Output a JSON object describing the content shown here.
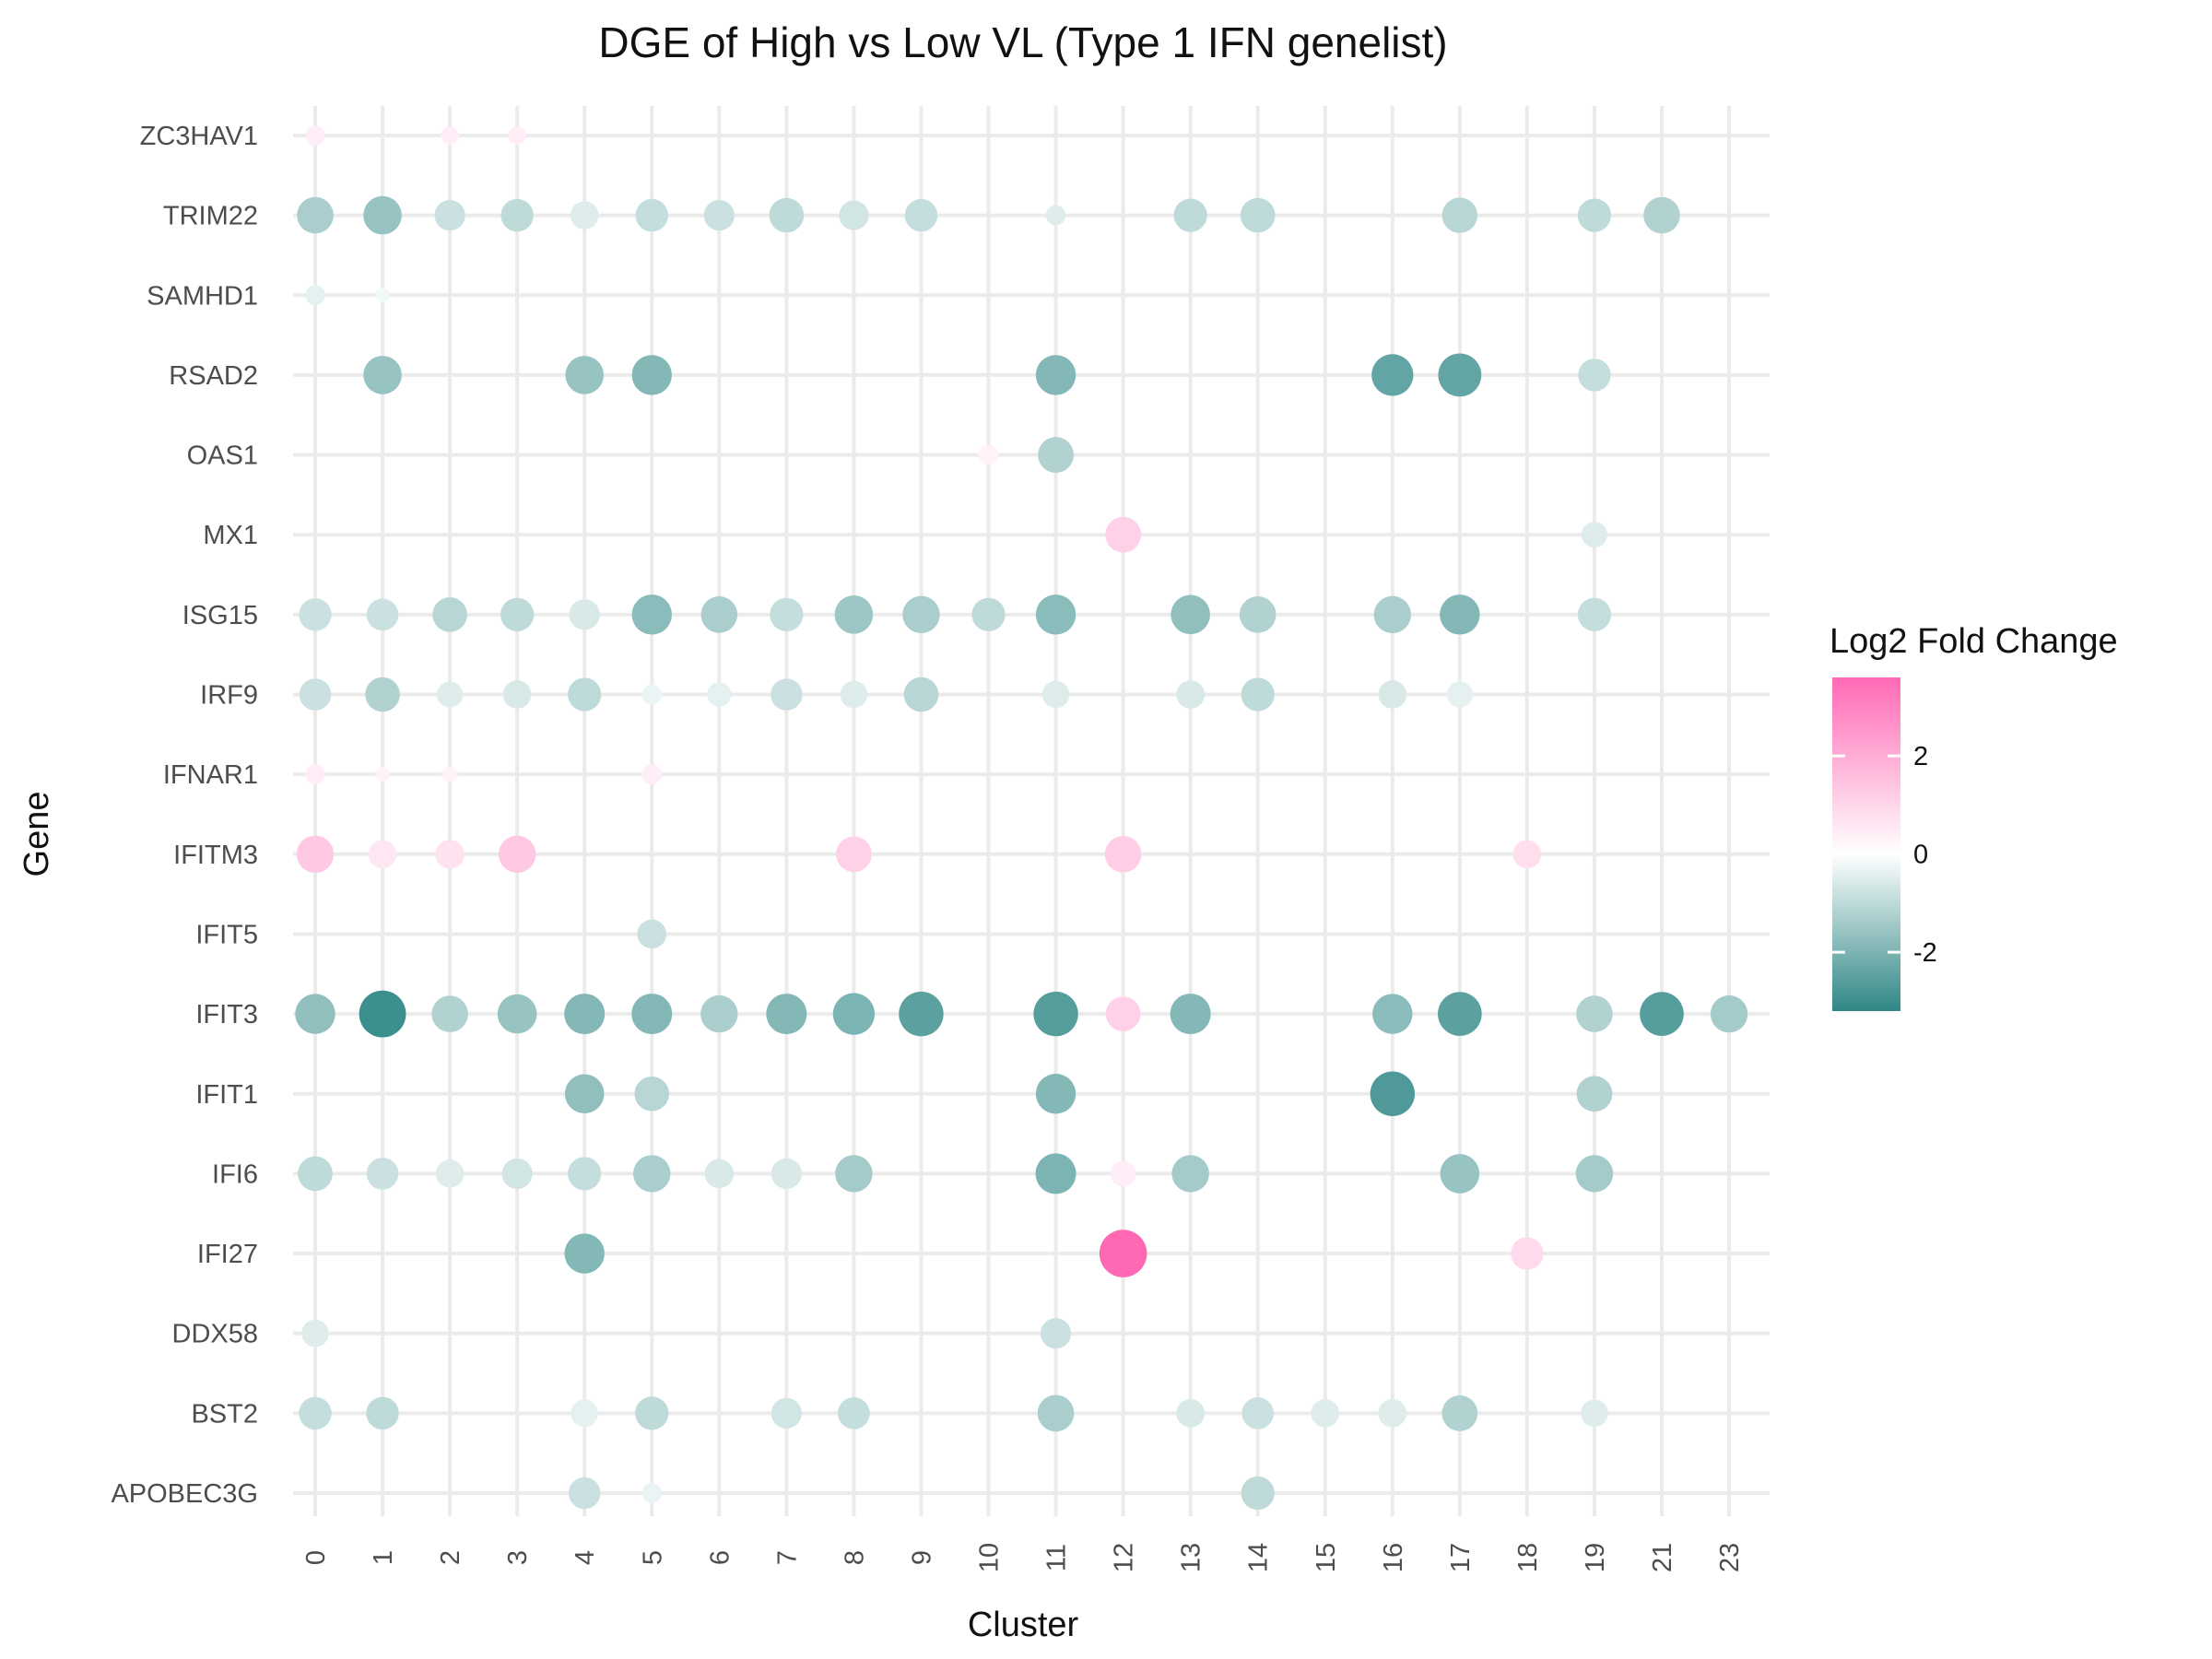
{
  "chart_data": {
    "type": "scatter",
    "title": "DGE of High vs Low VL (Type 1 IFN genelist)",
    "xlabel": "Cluster",
    "ylabel": "Gene",
    "x_categories": [
      "0",
      "1",
      "2",
      "3",
      "4",
      "5",
      "6",
      "7",
      "8",
      "9",
      "10",
      "11",
      "12",
      "13",
      "14",
      "15",
      "16",
      "17",
      "18",
      "19",
      "21",
      "23"
    ],
    "y_categories": [
      "APOBEC3G",
      "BST2",
      "DDX58",
      "IFI27",
      "IFI6",
      "IFIT1",
      "IFIT3",
      "IFIT5",
      "IFITM3",
      "IFNAR1",
      "IRF9",
      "ISG15",
      "MX1",
      "OAS1",
      "RSAD2",
      "SAMHD1",
      "TRIM22",
      "ZC3HAV1"
    ],
    "grid": true,
    "legend": {
      "title": "Log2 Fold Change",
      "position": "right",
      "ticks": [
        2,
        0,
        -2
      ],
      "range": [
        -3.2,
        3.6
      ],
      "low_color": "#2e8785",
      "mid_color": "#ffffff",
      "high_color": "#ff69b4"
    },
    "points": [
      {
        "gene": "ZC3HAV1",
        "cluster": "0",
        "log2fc": 0.4,
        "size": 0.15
      },
      {
        "gene": "ZC3HAV1",
        "cluster": "2",
        "log2fc": 0.4,
        "size": 0.12
      },
      {
        "gene": "ZC3HAV1",
        "cluster": "3",
        "log2fc": 0.4,
        "size": 0.12
      },
      {
        "gene": "TRIM22",
        "cluster": "0",
        "log2fc": -1.3,
        "size": 0.5
      },
      {
        "gene": "TRIM22",
        "cluster": "1",
        "log2fc": -1.6,
        "size": 0.55
      },
      {
        "gene": "TRIM22",
        "cluster": "2",
        "log2fc": -0.8,
        "size": 0.35
      },
      {
        "gene": "TRIM22",
        "cluster": "3",
        "log2fc": -1.0,
        "size": 0.4
      },
      {
        "gene": "TRIM22",
        "cluster": "4",
        "log2fc": -0.5,
        "size": 0.3
      },
      {
        "gene": "TRIM22",
        "cluster": "5",
        "log2fc": -0.9,
        "size": 0.4
      },
      {
        "gene": "TRIM22",
        "cluster": "6",
        "log2fc": -0.8,
        "size": 0.35
      },
      {
        "gene": "TRIM22",
        "cluster": "7",
        "log2fc": -1.0,
        "size": 0.45
      },
      {
        "gene": "TRIM22",
        "cluster": "8",
        "log2fc": -0.7,
        "size": 0.33
      },
      {
        "gene": "TRIM22",
        "cluster": "9",
        "log2fc": -0.9,
        "size": 0.4
      },
      {
        "gene": "TRIM22",
        "cluster": "11",
        "log2fc": -0.5,
        "size": 0.15
      },
      {
        "gene": "TRIM22",
        "cluster": "13",
        "log2fc": -1.0,
        "size": 0.42
      },
      {
        "gene": "TRIM22",
        "cluster": "14",
        "log2fc": -1.0,
        "size": 0.45
      },
      {
        "gene": "TRIM22",
        "cluster": "17",
        "log2fc": -1.1,
        "size": 0.47
      },
      {
        "gene": "TRIM22",
        "cluster": "19",
        "log2fc": -1.0,
        "size": 0.42
      },
      {
        "gene": "TRIM22",
        "cluster": "21",
        "log2fc": -1.2,
        "size": 0.5
      },
      {
        "gene": "SAMHD1",
        "cluster": "0",
        "log2fc": -0.4,
        "size": 0.15
      },
      {
        "gene": "SAMHD1",
        "cluster": "1",
        "log2fc": -0.2,
        "size": 0.08
      },
      {
        "gene": "RSAD2",
        "cluster": "1",
        "log2fc": -1.6,
        "size": 0.55
      },
      {
        "gene": "RSAD2",
        "cluster": "4",
        "log2fc": -1.6,
        "size": 0.55
      },
      {
        "gene": "RSAD2",
        "cluster": "5",
        "log2fc": -1.9,
        "size": 0.6
      },
      {
        "gene": "RSAD2",
        "cluster": "11",
        "log2fc": -1.9,
        "size": 0.6
      },
      {
        "gene": "RSAD2",
        "cluster": "16",
        "log2fc": -2.4,
        "size": 0.65
      },
      {
        "gene": "RSAD2",
        "cluster": "17",
        "log2fc": -2.4,
        "size": 0.7
      },
      {
        "gene": "RSAD2",
        "cluster": "19",
        "log2fc": -0.9,
        "size": 0.4
      },
      {
        "gene": "OAS1",
        "cluster": "10",
        "log2fc": 0.3,
        "size": 0.15
      },
      {
        "gene": "OAS1",
        "cluster": "11",
        "log2fc": -1.2,
        "size": 0.48
      },
      {
        "gene": "MX1",
        "cluster": "12",
        "log2fc": 1.1,
        "size": 0.48
      },
      {
        "gene": "MX1",
        "cluster": "19",
        "log2fc": -0.5,
        "size": 0.25
      },
      {
        "gene": "ISG15",
        "cluster": "0",
        "log2fc": -0.8,
        "size": 0.4
      },
      {
        "gene": "ISG15",
        "cluster": "1",
        "log2fc": -0.8,
        "size": 0.38
      },
      {
        "gene": "ISG15",
        "cluster": "2",
        "log2fc": -1.1,
        "size": 0.45
      },
      {
        "gene": "ISG15",
        "cluster": "3",
        "log2fc": -1.0,
        "size": 0.42
      },
      {
        "gene": "ISG15",
        "cluster": "4",
        "log2fc": -0.6,
        "size": 0.35
      },
      {
        "gene": "ISG15",
        "cluster": "5",
        "log2fc": -1.8,
        "size": 0.6
      },
      {
        "gene": "ISG15",
        "cluster": "6",
        "log2fc": -1.3,
        "size": 0.5
      },
      {
        "gene": "ISG15",
        "cluster": "7",
        "log2fc": -0.9,
        "size": 0.42
      },
      {
        "gene": "ISG15",
        "cluster": "8",
        "log2fc": -1.5,
        "size": 0.55
      },
      {
        "gene": "ISG15",
        "cluster": "9",
        "log2fc": -1.3,
        "size": 0.52
      },
      {
        "gene": "ISG15",
        "cluster": "10",
        "log2fc": -1.0,
        "size": 0.42
      },
      {
        "gene": "ISG15",
        "cluster": "11",
        "log2fc": -1.8,
        "size": 0.6
      },
      {
        "gene": "ISG15",
        "cluster": "13",
        "log2fc": -1.7,
        "size": 0.58
      },
      {
        "gene": "ISG15",
        "cluster": "14",
        "log2fc": -1.2,
        "size": 0.5
      },
      {
        "gene": "ISG15",
        "cluster": "16",
        "log2fc": -1.3,
        "size": 0.52
      },
      {
        "gene": "ISG15",
        "cluster": "17",
        "log2fc": -1.9,
        "size": 0.6
      },
      {
        "gene": "ISG15",
        "cluster": "19",
        "log2fc": -0.9,
        "size": 0.42
      },
      {
        "gene": "IRF9",
        "cluster": "0",
        "log2fc": -0.8,
        "size": 0.38
      },
      {
        "gene": "IRF9",
        "cluster": "1",
        "log2fc": -1.2,
        "size": 0.45
      },
      {
        "gene": "IRF9",
        "cluster": "2",
        "log2fc": -0.5,
        "size": 0.25
      },
      {
        "gene": "IRF9",
        "cluster": "3",
        "log2fc": -0.6,
        "size": 0.3
      },
      {
        "gene": "IRF9",
        "cluster": "4",
        "log2fc": -1.0,
        "size": 0.42
      },
      {
        "gene": "IRF9",
        "cluster": "5",
        "log2fc": -0.3,
        "size": 0.15
      },
      {
        "gene": "IRF9",
        "cluster": "6",
        "log2fc": -0.4,
        "size": 0.22
      },
      {
        "gene": "IRF9",
        "cluster": "7",
        "log2fc": -0.8,
        "size": 0.38
      },
      {
        "gene": "IRF9",
        "cluster": "8",
        "log2fc": -0.5,
        "size": 0.28
      },
      {
        "gene": "IRF9",
        "cluster": "9",
        "log2fc": -1.1,
        "size": 0.45
      },
      {
        "gene": "IRF9",
        "cluster": "11",
        "log2fc": -0.5,
        "size": 0.28
      },
      {
        "gene": "IRF9",
        "cluster": "13",
        "log2fc": -0.6,
        "size": 0.3
      },
      {
        "gene": "IRF9",
        "cluster": "14",
        "log2fc": -1.0,
        "size": 0.42
      },
      {
        "gene": "IRF9",
        "cluster": "16",
        "log2fc": -0.6,
        "size": 0.3
      },
      {
        "gene": "IRF9",
        "cluster": "17",
        "log2fc": -0.4,
        "size": 0.25
      },
      {
        "gene": "IFNAR1",
        "cluster": "0",
        "log2fc": 0.4,
        "size": 0.15
      },
      {
        "gene": "IFNAR1",
        "cluster": "1",
        "log2fc": 0.3,
        "size": 0.08
      },
      {
        "gene": "IFNAR1",
        "cluster": "2",
        "log2fc": 0.3,
        "size": 0.1
      },
      {
        "gene": "IFNAR1",
        "cluster": "5",
        "log2fc": 0.4,
        "size": 0.15
      },
      {
        "gene": "IFITM3",
        "cluster": "0",
        "log2fc": 1.3,
        "size": 0.52
      },
      {
        "gene": "IFITM3",
        "cluster": "1",
        "log2fc": 0.6,
        "size": 0.3
      },
      {
        "gene": "IFITM3",
        "cluster": "2",
        "log2fc": 0.7,
        "size": 0.32
      },
      {
        "gene": "IFITM3",
        "cluster": "3",
        "log2fc": 1.3,
        "size": 0.52
      },
      {
        "gene": "IFITM3",
        "cluster": "8",
        "log2fc": 1.1,
        "size": 0.48
      },
      {
        "gene": "IFITM3",
        "cluster": "12",
        "log2fc": 1.2,
        "size": 0.5
      },
      {
        "gene": "IFITM3",
        "cluster": "18",
        "log2fc": 0.8,
        "size": 0.3
      },
      {
        "gene": "IFIT5",
        "cluster": "5",
        "log2fc": -0.8,
        "size": 0.32
      },
      {
        "gene": "IFIT3",
        "cluster": "0",
        "log2fc": -1.7,
        "size": 0.6
      },
      {
        "gene": "IFIT3",
        "cluster": "1",
        "log2fc": -3.0,
        "size": 0.82
      },
      {
        "gene": "IFIT3",
        "cluster": "2",
        "log2fc": -1.2,
        "size": 0.5
      },
      {
        "gene": "IFIT3",
        "cluster": "3",
        "log2fc": -1.6,
        "size": 0.58
      },
      {
        "gene": "IFIT3",
        "cluster": "4",
        "log2fc": -1.9,
        "size": 0.62
      },
      {
        "gene": "IFIT3",
        "cluster": "5",
        "log2fc": -1.9,
        "size": 0.62
      },
      {
        "gene": "IFIT3",
        "cluster": "6",
        "log2fc": -1.3,
        "size": 0.52
      },
      {
        "gene": "IFIT3",
        "cluster": "7",
        "log2fc": -1.9,
        "size": 0.62
      },
      {
        "gene": "IFIT3",
        "cluster": "8",
        "log2fc": -2.0,
        "size": 0.65
      },
      {
        "gene": "IFIT3",
        "cluster": "9",
        "log2fc": -2.5,
        "size": 0.75
      },
      {
        "gene": "IFIT3",
        "cluster": "11",
        "log2fc": -2.6,
        "size": 0.75
      },
      {
        "gene": "IFIT3",
        "cluster": "12",
        "log2fc": 1.1,
        "size": 0.45
      },
      {
        "gene": "IFIT3",
        "cluster": "13",
        "log2fc": -1.9,
        "size": 0.62
      },
      {
        "gene": "IFIT3",
        "cluster": "16",
        "log2fc": -1.8,
        "size": 0.6
      },
      {
        "gene": "IFIT3",
        "cluster": "17",
        "log2fc": -2.5,
        "size": 0.72
      },
      {
        "gene": "IFIT3",
        "cluster": "19",
        "log2fc": -1.2,
        "size": 0.5
      },
      {
        "gene": "IFIT3",
        "cluster": "21",
        "log2fc": -2.6,
        "size": 0.72
      },
      {
        "gene": "IFIT3",
        "cluster": "23",
        "log2fc": -1.4,
        "size": 0.52
      },
      {
        "gene": "IFIT1",
        "cluster": "4",
        "log2fc": -1.7,
        "size": 0.58
      },
      {
        "gene": "IFIT1",
        "cluster": "5",
        "log2fc": -1.1,
        "size": 0.45
      },
      {
        "gene": "IFIT1",
        "cluster": "11",
        "log2fc": -1.9,
        "size": 0.6
      },
      {
        "gene": "IFIT1",
        "cluster": "16",
        "log2fc": -2.7,
        "size": 0.75
      },
      {
        "gene": "IFIT1",
        "cluster": "19",
        "log2fc": -1.2,
        "size": 0.48
      },
      {
        "gene": "IFI6",
        "cluster": "0",
        "log2fc": -1.0,
        "size": 0.45
      },
      {
        "gene": "IFI6",
        "cluster": "1",
        "log2fc": -0.8,
        "size": 0.38
      },
      {
        "gene": "IFI6",
        "cluster": "2",
        "log2fc": -0.5,
        "size": 0.3
      },
      {
        "gene": "IFI6",
        "cluster": "3",
        "log2fc": -0.7,
        "size": 0.35
      },
      {
        "gene": "IFI6",
        "cluster": "4",
        "log2fc": -0.9,
        "size": 0.42
      },
      {
        "gene": "IFI6",
        "cluster": "5",
        "log2fc": -1.3,
        "size": 0.52
      },
      {
        "gene": "IFI6",
        "cluster": "6",
        "log2fc": -0.6,
        "size": 0.32
      },
      {
        "gene": "IFI6",
        "cluster": "7",
        "log2fc": -0.6,
        "size": 0.35
      },
      {
        "gene": "IFI6",
        "cluster": "8",
        "log2fc": -1.4,
        "size": 0.52
      },
      {
        "gene": "IFI6",
        "cluster": "11",
        "log2fc": -2.0,
        "size": 0.62
      },
      {
        "gene": "IFI6",
        "cluster": "12",
        "log2fc": 0.4,
        "size": 0.25
      },
      {
        "gene": "IFI6",
        "cluster": "13",
        "log2fc": -1.4,
        "size": 0.52
      },
      {
        "gene": "IFI6",
        "cluster": "17",
        "log2fc": -1.6,
        "size": 0.58
      },
      {
        "gene": "IFI6",
        "cluster": "19",
        "log2fc": -1.4,
        "size": 0.52
      },
      {
        "gene": "IFI27",
        "cluster": "4",
        "log2fc": -1.9,
        "size": 0.6
      },
      {
        "gene": "IFI27",
        "cluster": "12",
        "log2fc": 3.6,
        "size": 0.85
      },
      {
        "gene": "IFI27",
        "cluster": "18",
        "log2fc": 0.9,
        "size": 0.4
      },
      {
        "gene": "DDX58",
        "cluster": "0",
        "log2fc": -0.5,
        "size": 0.28
      },
      {
        "gene": "DDX58",
        "cluster": "11",
        "log2fc": -0.8,
        "size": 0.35
      },
      {
        "gene": "BST2",
        "cluster": "0",
        "log2fc": -0.9,
        "size": 0.4
      },
      {
        "gene": "BST2",
        "cluster": "1",
        "log2fc": -1.0,
        "size": 0.4
      },
      {
        "gene": "BST2",
        "cluster": "4",
        "log2fc": -0.4,
        "size": 0.28
      },
      {
        "gene": "BST2",
        "cluster": "5",
        "log2fc": -1.0,
        "size": 0.42
      },
      {
        "gene": "BST2",
        "cluster": "7",
        "log2fc": -0.7,
        "size": 0.35
      },
      {
        "gene": "BST2",
        "cluster": "8",
        "log2fc": -0.9,
        "size": 0.38
      },
      {
        "gene": "BST2",
        "cluster": "11",
        "log2fc": -1.3,
        "size": 0.5
      },
      {
        "gene": "BST2",
        "cluster": "13",
        "log2fc": -0.6,
        "size": 0.3
      },
      {
        "gene": "BST2",
        "cluster": "14",
        "log2fc": -0.8,
        "size": 0.38
      },
      {
        "gene": "BST2",
        "cluster": "15",
        "log2fc": -0.5,
        "size": 0.3
      },
      {
        "gene": "BST2",
        "cluster": "16",
        "log2fc": -0.5,
        "size": 0.3
      },
      {
        "gene": "BST2",
        "cluster": "17",
        "log2fc": -1.2,
        "size": 0.48
      },
      {
        "gene": "BST2",
        "cluster": "19",
        "log2fc": -0.5,
        "size": 0.28
      },
      {
        "gene": "APOBEC3G",
        "cluster": "4",
        "log2fc": -0.8,
        "size": 0.38
      },
      {
        "gene": "APOBEC3G",
        "cluster": "5",
        "log2fc": -0.3,
        "size": 0.15
      },
      {
        "gene": "APOBEC3G",
        "cluster": "14",
        "log2fc": -1.0,
        "size": 0.42
      }
    ]
  }
}
